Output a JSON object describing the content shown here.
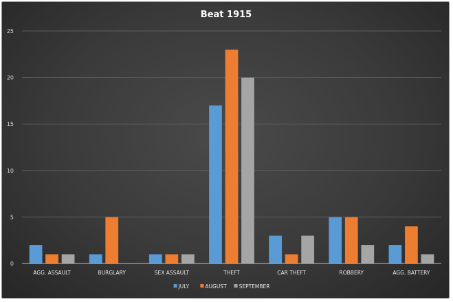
{
  "chart_data": {
    "type": "bar",
    "title": "Beat 1915",
    "categories": [
      "AGG. ASSAULT",
      "BURGLARY",
      "SEX ASSAULT",
      "THEFT",
      "CAR THEFT",
      "ROBBERY",
      "AGG. BATTERY"
    ],
    "series": [
      {
        "name": "JULY",
        "color": "#5b9bd5",
        "values": [
          2,
          1,
          1,
          17,
          3,
          5,
          2
        ]
      },
      {
        "name": "AUGUST",
        "color": "#ed7d31",
        "values": [
          1,
          5,
          1,
          23,
          1,
          5,
          4
        ]
      },
      {
        "name": "SEPTEMBER",
        "color": "#a5a5a5",
        "values": [
          1,
          0,
          1,
          20,
          3,
          2,
          1
        ]
      }
    ],
    "ylim": [
      0,
      25
    ],
    "yticks": [
      0,
      5,
      10,
      15,
      20,
      25
    ],
    "grid": true,
    "legend": "bottom-center"
  }
}
